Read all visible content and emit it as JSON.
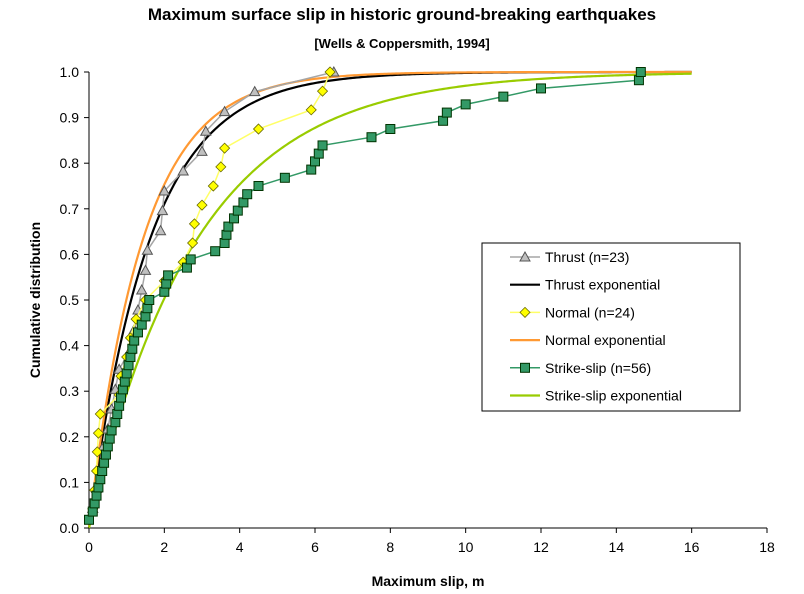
{
  "chart_data": {
    "type": "line",
    "title": "Maximum surface slip in historic ground-breaking earthquakes",
    "subtitle": "[Wells & Coppersmith, 1994]",
    "xlabel": "Maximum slip, m",
    "ylabel": "Cumulative distribution",
    "xlim": [
      0,
      18
    ],
    "ylim": [
      0,
      1
    ],
    "xticks": [
      "0",
      "2",
      "4",
      "6",
      "8",
      "10",
      "12",
      "14",
      "16",
      "18"
    ],
    "yticks": [
      "0.0",
      "0.1",
      "0.2",
      "0.3",
      "0.4",
      "0.5",
      "0.6",
      "0.7",
      "0.8",
      "0.9",
      "1.0"
    ],
    "grid": false,
    "legend_position": "right",
    "series": [
      {
        "name": "Thrust (n=23)",
        "color": "#a6a6a6",
        "marker": "triangle",
        "marker_fill": "#c0c0c0",
        "x": [
          0.1,
          0.2,
          0.3,
          0.35,
          0.5,
          0.6,
          0.7,
          0.8,
          1.1,
          1.2,
          1.3,
          1.4,
          1.5,
          1.55,
          1.9,
          1.95,
          2.0,
          2.5,
          3.0,
          3.1,
          3.6,
          4.4,
          6.5
        ],
        "y": [
          0.043,
          0.087,
          0.13,
          0.174,
          0.217,
          0.261,
          0.304,
          0.348,
          0.391,
          0.435,
          0.478,
          0.522,
          0.565,
          0.609,
          0.652,
          0.696,
          0.739,
          0.783,
          0.826,
          0.87,
          0.913,
          0.957,
          1.0
        ]
      },
      {
        "name": "Thrust exponential",
        "color": "#000000",
        "marker": "none",
        "rate": 0.62
      },
      {
        "name": "Normal (n=24)",
        "color": "#ffff66",
        "marker": "diamond",
        "marker_fill": "#ffff00",
        "x": [
          0.1,
          0.15,
          0.2,
          0.22,
          0.25,
          0.3,
          0.8,
          0.85,
          1.0,
          1.1,
          1.25,
          1.5,
          2.0,
          2.5,
          2.75,
          2.8,
          3.0,
          3.3,
          3.5,
          3.6,
          4.5,
          5.9,
          6.2,
          6.4
        ],
        "y": [
          0.042,
          0.083,
          0.125,
          0.167,
          0.208,
          0.25,
          0.292,
          0.333,
          0.375,
          0.417,
          0.458,
          0.5,
          0.542,
          0.583,
          0.625,
          0.667,
          0.708,
          0.75,
          0.792,
          0.833,
          0.875,
          0.917,
          0.958,
          1.0
        ]
      },
      {
        "name": "Normal exponential",
        "color": "#ff9933",
        "marker": "none",
        "rate": 0.7
      },
      {
        "name": "Strike-slip (n=56)",
        "color": "#339966",
        "marker": "square",
        "marker_fill": "#339966",
        "x": [
          0.0,
          0.1,
          0.15,
          0.2,
          0.25,
          0.3,
          0.35,
          0.4,
          0.45,
          0.5,
          0.55,
          0.6,
          0.7,
          0.75,
          0.8,
          0.85,
          0.9,
          0.95,
          1.0,
          1.05,
          1.1,
          1.15,
          1.2,
          1.3,
          1.4,
          1.5,
          1.55,
          1.6,
          2.0,
          2.05,
          2.1,
          2.6,
          2.7,
          3.35,
          3.6,
          3.65,
          3.7,
          3.85,
          3.95,
          4.1,
          4.2,
          4.5,
          5.2,
          5.9,
          6.0,
          6.1,
          6.2,
          7.5,
          8.0,
          9.4,
          9.5,
          10.0,
          11.0,
          12.0,
          14.6,
          14.65
        ],
        "y": [
          0.018,
          0.036,
          0.054,
          0.071,
          0.089,
          0.107,
          0.125,
          0.143,
          0.161,
          0.179,
          0.196,
          0.214,
          0.232,
          0.25,
          0.268,
          0.286,
          0.304,
          0.321,
          0.339,
          0.357,
          0.375,
          0.393,
          0.411,
          0.429,
          0.446,
          0.464,
          0.482,
          0.5,
          0.518,
          0.536,
          0.554,
          0.571,
          0.589,
          0.607,
          0.625,
          0.643,
          0.661,
          0.679,
          0.696,
          0.714,
          0.732,
          0.75,
          0.768,
          0.786,
          0.804,
          0.821,
          0.839,
          0.857,
          0.875,
          0.893,
          0.911,
          0.929,
          0.946,
          0.964,
          0.982,
          1.0
        ]
      },
      {
        "name": "Strike-slip exponential",
        "color": "#99cc00",
        "marker": "none",
        "rate": 0.35
      }
    ]
  }
}
